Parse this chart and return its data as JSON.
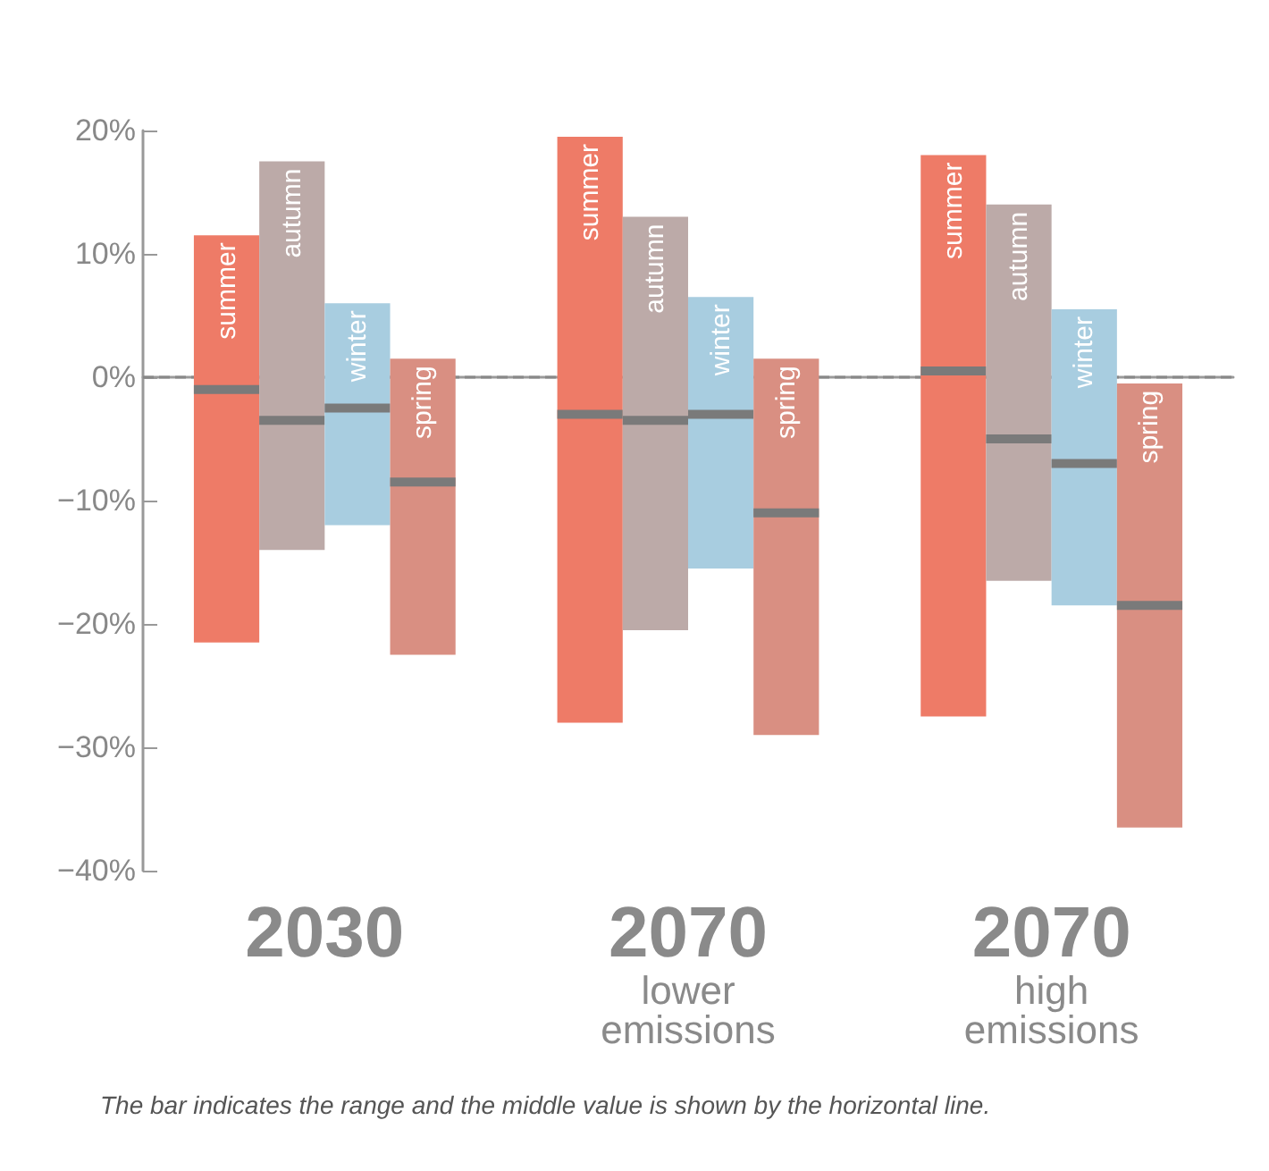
{
  "chart_data": {
    "type": "box",
    "categories": [
      "2030",
      "2070\nlower\nemissions",
      "2070\nhigh\nemissions"
    ],
    "series": [
      {
        "name": "summer",
        "color": "#ee7b67",
        "boxes": [
          {
            "low": -21.5,
            "q1": -21.5,
            "median": -1,
            "q3": 11.5,
            "high": 11.5
          },
          {
            "low": -28,
            "q1": -28,
            "median": -3,
            "q3": 19.5,
            "high": 19.5
          },
          {
            "low": -27.5,
            "q1": -27.5,
            "median": 0.5,
            "q3": 18,
            "high": 18
          }
        ]
      },
      {
        "name": "autumn",
        "color": "#bcaaa8",
        "boxes": [
          {
            "low": -14,
            "q1": -14,
            "median": -3.5,
            "q3": 17.5,
            "high": 17.5
          },
          {
            "low": -20.5,
            "q1": -20.5,
            "median": -3.5,
            "q3": 13,
            "high": 13
          },
          {
            "low": -16.5,
            "q1": -16.5,
            "median": -5,
            "q3": 14,
            "high": 14
          }
        ]
      },
      {
        "name": "winter",
        "color": "#a8cde0",
        "boxes": [
          {
            "low": -12,
            "q1": -12,
            "median": -2.5,
            "q3": 6,
            "high": 6
          },
          {
            "low": -15.5,
            "q1": -15.5,
            "median": -3,
            "q3": 6.5,
            "high": 6.5
          },
          {
            "low": -18.5,
            "q1": -18.5,
            "median": -7,
            "q3": 5.5,
            "high": 5.5
          }
        ]
      },
      {
        "name": "spring",
        "color": "#d98f82",
        "boxes": [
          {
            "low": -22.5,
            "q1": -22.5,
            "median": -8.5,
            "q3": 1.5,
            "high": 1.5
          },
          {
            "low": -29,
            "q1": -29,
            "median": -11,
            "q3": 1.5,
            "high": 1.5
          },
          {
            "low": -36.5,
            "q1": -36.5,
            "median": -18.5,
            "q3": -0.5,
            "high": -0.5
          }
        ]
      }
    ],
    "ylim": [
      -40,
      20
    ],
    "yticks": [
      {
        "value": 20,
        "label": "20%"
      },
      {
        "value": 10,
        "label": "10%"
      },
      {
        "value": 0,
        "label": "0%"
      },
      {
        "value": -10,
        "label": "−10%"
      },
      {
        "value": -20,
        "label": "−20%"
      },
      {
        "value": -30,
        "label": "−30%"
      },
      {
        "value": -40,
        "label": "−40%"
      }
    ],
    "ref_lines": [
      {
        "axis": "y",
        "value": 0,
        "color": "#888888",
        "line_style": "dashed"
      }
    ],
    "grid": false,
    "legend": false,
    "annotations": [
      "The bar indicates the range and the middle value is shown by the horizontal line."
    ]
  }
}
